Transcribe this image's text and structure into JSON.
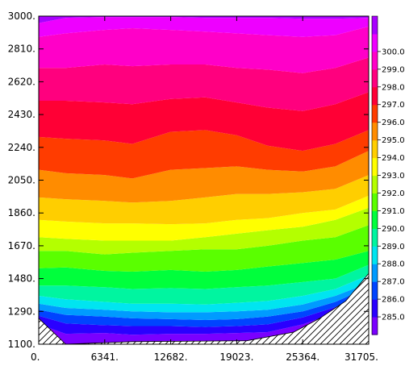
{
  "chart_data": {
    "type": "contour",
    "title": "",
    "xlabel": "",
    "ylabel": "",
    "xlim": [
      0,
      31705
    ],
    "ylim": [
      1100,
      3000
    ],
    "x_ticks": [
      "0.",
      "6341.",
      "12682.",
      "19023.",
      "25364.",
      "31705."
    ],
    "y_ticks": [
      "1100.",
      "1290.",
      "1480.",
      "1670.",
      "1860.",
      "2050.",
      "2240.",
      "2430.",
      "2620.",
      "2810.",
      "3000."
    ],
    "x_tick_values": [
      0,
      6341,
      12682,
      19023,
      25364,
      31705
    ],
    "y_tick_values": [
      1100,
      1290,
      1480,
      1670,
      1860,
      2050,
      2240,
      2430,
      2620,
      2810,
      3000
    ],
    "colorbar_levels": [
      "285.0",
      "286.0",
      "287.0",
      "288.0",
      "289.0",
      "290.0",
      "291.0",
      "292.0",
      "293.0",
      "294.0",
      "295.0",
      "296.0",
      "297.0",
      "298.0",
      "299.0",
      "300.0"
    ],
    "colorbar_values": [
      285,
      286,
      287,
      288,
      289,
      290,
      291,
      292,
      293,
      294,
      295,
      296,
      297,
      298,
      299,
      300
    ],
    "band_colors": [
      "#7a00ff",
      "#2a00ff",
      "#0044ff",
      "#009bff",
      "#00e5f0",
      "#00f5a0",
      "#00ff3c",
      "#5aff00",
      "#b4ff00",
      "#ffff00",
      "#ffce00",
      "#ff8c00",
      "#ff3c00",
      "#ff0035",
      "#ff007e",
      "#ff00c8",
      "#ee00ff",
      "#a800ff"
    ],
    "terrain_hatched": true,
    "terrain_profile": {
      "x": [
        0,
        2600,
        9000,
        20000,
        24500,
        27000,
        29500,
        31705
      ],
      "y": [
        1250,
        1100,
        1115,
        1120,
        1170,
        1250,
        1350,
        1510
      ]
    },
    "contour_boundaries": {
      "x": [
        0,
        2600,
        6341,
        9000,
        12682,
        16000,
        19023,
        22000,
        25364,
        28500,
        31705
      ],
      "levels": [
        {
          "value": 285,
          "y": [
            1215,
            1160,
            1165,
            1155,
            1160,
            1160,
            1165,
            1170,
            1215,
            1280,
            1380
          ]
        },
        {
          "value": 286,
          "y": [
            1265,
            1220,
            1210,
            1205,
            1205,
            1200,
            1205,
            1215,
            1255,
            1315,
            1410
          ]
        },
        {
          "value": 287,
          "y": [
            1300,
            1270,
            1260,
            1250,
            1245,
            1240,
            1245,
            1260,
            1290,
            1345,
            1430
          ]
        },
        {
          "value": 288,
          "y": [
            1335,
            1310,
            1300,
            1290,
            1285,
            1285,
            1290,
            1300,
            1330,
            1380,
            1455
          ]
        },
        {
          "value": 289,
          "y": [
            1380,
            1360,
            1345,
            1335,
            1335,
            1330,
            1340,
            1350,
            1380,
            1420,
            1500
          ]
        },
        {
          "value": 290,
          "y": [
            1440,
            1440,
            1430,
            1420,
            1425,
            1420,
            1430,
            1440,
            1460,
            1480,
            1560
          ]
        },
        {
          "value": 291,
          "y": [
            1540,
            1545,
            1525,
            1520,
            1530,
            1520,
            1530,
            1550,
            1570,
            1590,
            1640
          ]
        },
        {
          "value": 292,
          "y": [
            1640,
            1640,
            1620,
            1630,
            1640,
            1650,
            1650,
            1670,
            1700,
            1720,
            1790
          ]
        },
        {
          "value": 293,
          "y": [
            1720,
            1710,
            1700,
            1700,
            1700,
            1720,
            1740,
            1760,
            1780,
            1820,
            1890
          ]
        },
        {
          "value": 294,
          "y": [
            1820,
            1810,
            1800,
            1800,
            1795,
            1800,
            1820,
            1830,
            1860,
            1880,
            1960
          ]
        },
        {
          "value": 295,
          "y": [
            1950,
            1940,
            1930,
            1920,
            1930,
            1950,
            1970,
            1970,
            1980,
            2000,
            2080
          ]
        },
        {
          "value": 296,
          "y": [
            2110,
            2090,
            2080,
            2060,
            2110,
            2120,
            2130,
            2110,
            2100,
            2130,
            2220
          ]
        },
        {
          "value": 297,
          "y": [
            2300,
            2290,
            2280,
            2260,
            2330,
            2340,
            2310,
            2250,
            2220,
            2260,
            2340
          ]
        },
        {
          "value": 298,
          "y": [
            2510,
            2510,
            2500,
            2490,
            2520,
            2530,
            2500,
            2470,
            2450,
            2490,
            2560
          ]
        },
        {
          "value": 299,
          "y": [
            2700,
            2700,
            2720,
            2710,
            2720,
            2720,
            2700,
            2690,
            2670,
            2700,
            2760
          ]
        },
        {
          "value": 300,
          "y": [
            2880,
            2900,
            2920,
            2930,
            2920,
            2910,
            2900,
            2890,
            2880,
            2890,
            2940
          ]
        },
        {
          "value": 301,
          "y": [
            2960,
            2990,
            2995,
            2995,
            2995,
            2990,
            2990,
            2990,
            2985,
            2985,
            2990
          ]
        }
      ]
    }
  }
}
